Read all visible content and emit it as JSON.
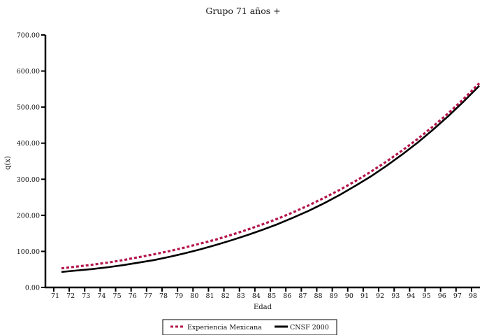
{
  "chart_data": {
    "type": "line",
    "title": "Grupo 71 años +",
    "xlabel": "Edad",
    "ylabel": "q(x)",
    "categories": [
      "71",
      "72",
      "73",
      "74",
      "75",
      "76",
      "77",
      "78",
      "79",
      "80",
      "81",
      "82",
      "83",
      "84",
      "85",
      "86",
      "87",
      "88",
      "89",
      "90",
      "91",
      "92",
      "93",
      "94",
      "95",
      "96",
      "97",
      "98"
    ],
    "y_tick_labels": [
      "0.00",
      "100.00",
      "200.00",
      "300.00",
      "400.00",
      "500.00",
      "600.00",
      "700.00"
    ],
    "ylim": [
      0,
      700
    ],
    "grid": false,
    "legend_position": "bottom",
    "series": [
      {
        "name": "Experiencia Mexicana",
        "color": "#b5174a",
        "style": "dashed",
        "values": [
          53,
          58,
          63,
          69,
          76,
          84,
          92,
          101,
          111,
          122,
          133,
          146,
          160,
          175,
          191,
          209,
          228,
          249,
          271,
          295,
          321,
          349,
          379,
          411,
          446,
          483,
          523,
          566
        ]
      },
      {
        "name": "CNSF 2000",
        "color": "#000000",
        "style": "solid",
        "values": [
          43,
          47,
          51,
          56,
          62,
          69,
          76,
          85,
          95,
          106,
          118,
          131,
          145,
          160,
          176,
          194,
          213,
          234,
          257,
          282,
          308,
          337,
          368,
          401,
          437,
          475,
          516,
          559
        ]
      }
    ]
  }
}
